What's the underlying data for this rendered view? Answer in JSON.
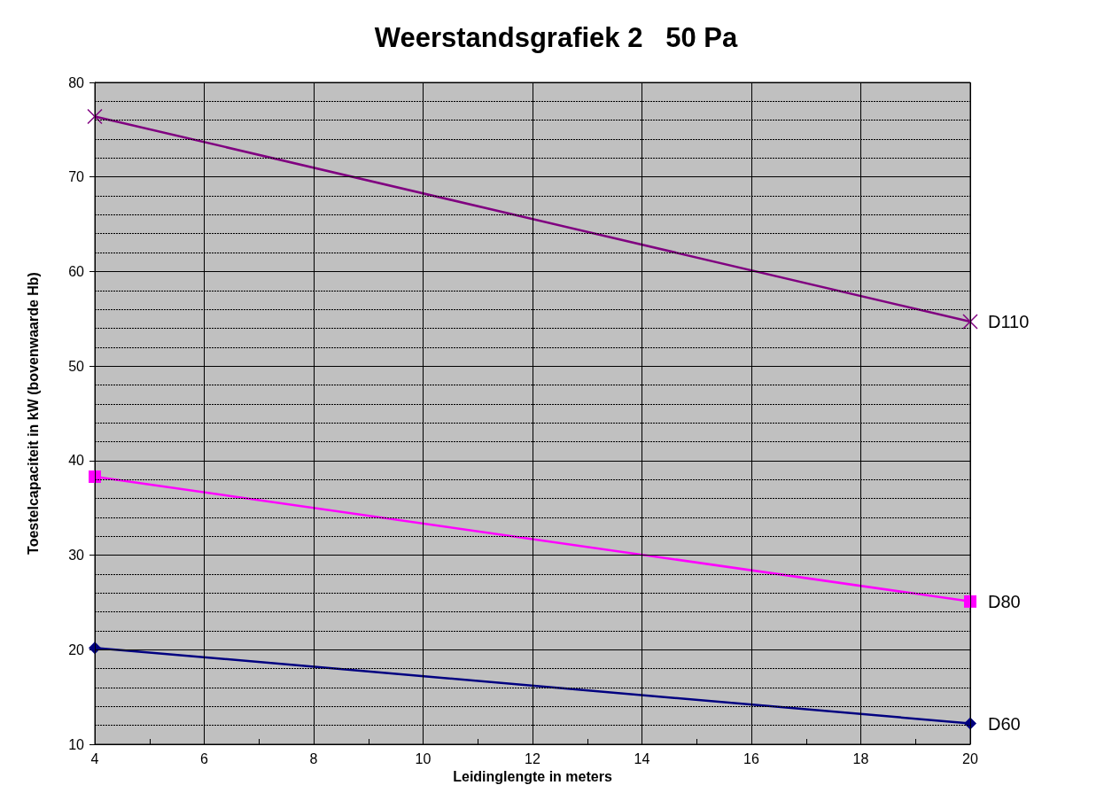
{
  "chart_data": {
    "type": "line",
    "title": "Weerstandsgrafiek 2   50 Pa",
    "xlabel": "Leidinglengte in meters",
    "ylabel": "Toestelcapaciteit in kW (bovenwaarde Hb)",
    "x": [
      4,
      20
    ],
    "series": [
      {
        "name": "D110",
        "color": "#800080",
        "marker": "cross",
        "values": [
          76.4,
          54.7
        ]
      },
      {
        "name": "D80",
        "color": "#ff00ff",
        "marker": "square",
        "values": [
          38.3,
          25.1
        ]
      },
      {
        "name": "D60",
        "color": "#000080",
        "marker": "diamond",
        "values": [
          20.2,
          12.2
        ]
      }
    ],
    "xlim": [
      4,
      20
    ],
    "xticks": [
      4,
      {
        "value": 5,
        "label": null
      },
      6,
      {
        "value": 7,
        "label": null
      },
      8,
      {
        "value": 9,
        "label": null
      },
      10,
      {
        "value": 11,
        "label": null
      },
      12,
      {
        "value": 13,
        "label": null
      },
      14,
      {
        "value": 15,
        "label": null
      },
      16,
      {
        "value": 17,
        "label": null
      },
      18,
      {
        "value": 19,
        "label": null
      },
      20
    ],
    "ylim": [
      10,
      80
    ],
    "yticks": [
      10,
      {
        "value": 12,
        "label": null
      },
      {
        "value": 14,
        "label": null
      },
      {
        "value": 16,
        "label": null
      },
      {
        "value": 18,
        "label": null
      },
      20,
      {
        "value": 22,
        "label": null
      },
      {
        "value": 24,
        "label": null
      },
      {
        "value": 26,
        "label": null
      },
      {
        "value": 28,
        "label": null
      },
      30,
      {
        "value": 32,
        "label": null
      },
      {
        "value": 34,
        "label": null
      },
      {
        "value": 36,
        "label": null
      },
      {
        "value": 38,
        "label": null
      },
      40,
      {
        "value": 42,
        "label": null
      },
      {
        "value": 44,
        "label": null
      },
      {
        "value": 46,
        "label": null
      },
      {
        "value": 48,
        "label": null
      },
      50,
      {
        "value": 52,
        "label": null
      },
      {
        "value": 54,
        "label": null
      },
      {
        "value": 56,
        "label": null
      },
      {
        "value": 58,
        "label": null
      },
      60,
      {
        "value": 62,
        "label": null
      },
      {
        "value": 64,
        "label": null
      },
      {
        "value": 66,
        "label": null
      },
      {
        "value": 68,
        "label": null
      },
      70,
      {
        "value": 72,
        "label": null
      },
      {
        "value": 74,
        "label": null
      },
      {
        "value": 76,
        "label": null
      },
      {
        "value": 78,
        "label": null
      },
      80
    ],
    "grid": true,
    "legend": false,
    "line_style": "solid"
  }
}
